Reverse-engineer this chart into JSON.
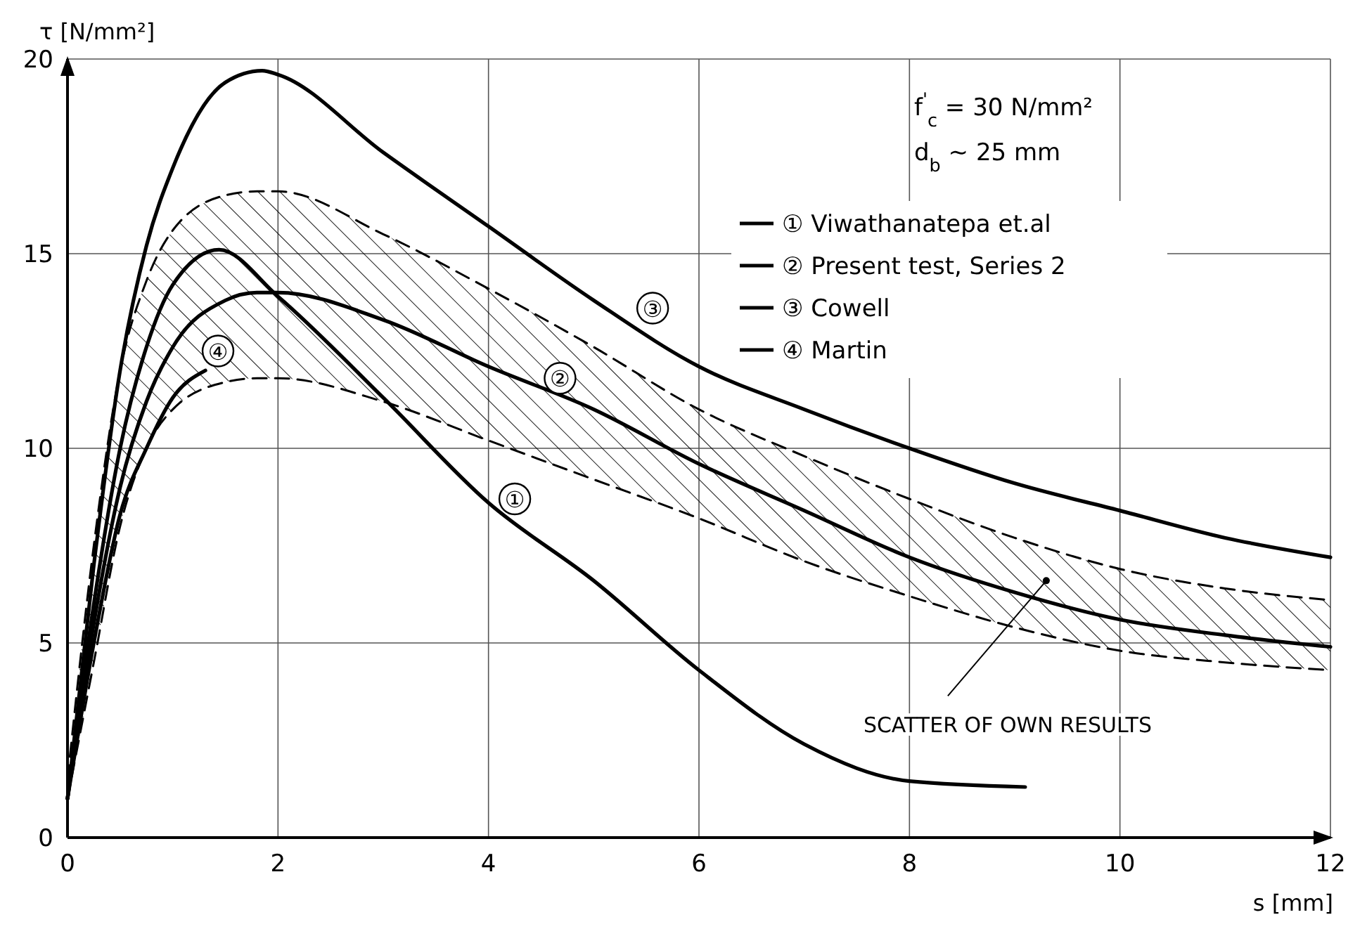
{
  "chart_data": {
    "type": "line",
    "xlabel": "s [mm]",
    "ylabel": "τ [N/mm²]",
    "xlim": [
      0,
      12
    ],
    "ylim": [
      0,
      20
    ],
    "xticks": [
      0,
      2,
      4,
      6,
      8,
      10,
      12
    ],
    "yticks": [
      0,
      5,
      10,
      15,
      20
    ],
    "grid": true,
    "legend": "top right",
    "line_style": "solid",
    "marker": "none",
    "series": [
      {
        "name": "① Viwathanatepa et.al",
        "color": "#000000",
        "x": [
          0,
          0.25,
          0.5,
          0.75,
          1,
          1.44,
          2,
          3,
          4,
          5,
          6,
          7,
          8,
          9.1
        ],
        "values": [
          1,
          6,
          10,
          12.6,
          14.2,
          15.1,
          13.9,
          11.3,
          8.6,
          6.6,
          4.3,
          2.4,
          1.45,
          1.3
        ]
      },
      {
        "name": "② Present test, Series 2",
        "color": "#000000",
        "x": [
          0,
          0.25,
          0.5,
          0.75,
          1,
          1.5,
          1.8,
          2,
          3,
          4,
          5,
          6,
          7,
          8,
          9,
          10,
          11,
          12
        ],
        "values": [
          1,
          5.5,
          9,
          11.2,
          12.6,
          13.8,
          14.0,
          14.0,
          13.3,
          12.1,
          11.0,
          9.6,
          8.4,
          7.2,
          6.3,
          5.6,
          5.2,
          4.9
        ],
        "lower": [
          1,
          4.5,
          8,
          10,
          11.0,
          11.7,
          11.8,
          11.8,
          11.2,
          10.2,
          9.2,
          8.2,
          7.1,
          6.2,
          5.4,
          4.8,
          4.5,
          4.3
        ],
        "upper": [
          1.5,
          7.5,
          12,
          14.3,
          15.6,
          16.5,
          16.6,
          16.6,
          15.5,
          14.1,
          12.6,
          11.0,
          9.8,
          8.7,
          7.7,
          6.9,
          6.4,
          6.1
        ]
      },
      {
        "type": "line",
        "line_style": "dashed",
        "color": "#000000",
        "x": [
          0,
          0.25,
          0.5,
          0.75,
          1,
          1.5,
          1.8,
          2,
          3,
          4,
          5,
          6,
          7,
          8,
          9,
          10,
          11,
          12
        ],
        "values": [
          1,
          4.5,
          8,
          10,
          11.0,
          11.7,
          11.8,
          11.8,
          11.2,
          10.2,
          9.2,
          8.2,
          7.1,
          6.2,
          5.4,
          4.8,
          4.5,
          4.3
        ]
      },
      {
        "type": "line",
        "line_style": "dashed",
        "color": "#000000",
        "x": [
          0,
          0.25,
          0.5,
          0.75,
          1,
          1.5,
          1.8,
          2,
          3,
          4,
          5,
          6,
          7,
          8,
          9,
          10,
          11,
          12
        ],
        "values": [
          1.5,
          7.5,
          12,
          14.3,
          15.6,
          16.5,
          16.6,
          16.6,
          15.5,
          14.1,
          12.6,
          11.0,
          9.8,
          8.7,
          7.7,
          6.9,
          6.4,
          6.1
        ]
      },
      {
        "name": "③ Cowell",
        "color": "#000000",
        "x": [
          0,
          0.25,
          0.5,
          0.75,
          1,
          1.5,
          1.85,
          2,
          3,
          4,
          5,
          6,
          7,
          8,
          9,
          10,
          11,
          12
        ],
        "values": [
          1,
          7,
          12,
          15.2,
          17.2,
          19.4,
          19.7,
          19.6,
          17.6,
          15.7,
          13.8,
          12.1,
          11.0,
          10.0,
          9.1,
          8.4,
          7.7,
          7.2
        ]
      },
      {
        "name": "④ Martin",
        "color": "#000000",
        "x": [
          0,
          0.25,
          0.5,
          0.75,
          1,
          1.31
        ],
        "values": [
          1,
          5,
          8.3,
          10,
          11.3,
          12.0
        ]
      }
    ],
    "annotations": [
      {
        "text": "①",
        "x": 4.25,
        "y": 8.7
      },
      {
        "text": "②",
        "x": 4.68,
        "y": 11.8
      },
      {
        "text": "③",
        "x": 5.56,
        "y": 13.6
      },
      {
        "text": "④",
        "x": 1.43,
        "y": 12.5
      },
      "f$^{'}$$_{c}$ = 30 N/mm²",
      "d$_{b}$ ~ 25 mm",
      {
        "text": "SCATTER OF OWN RESULTS",
        "x": 9.3,
        "y": 6.6
      }
    ]
  }
}
